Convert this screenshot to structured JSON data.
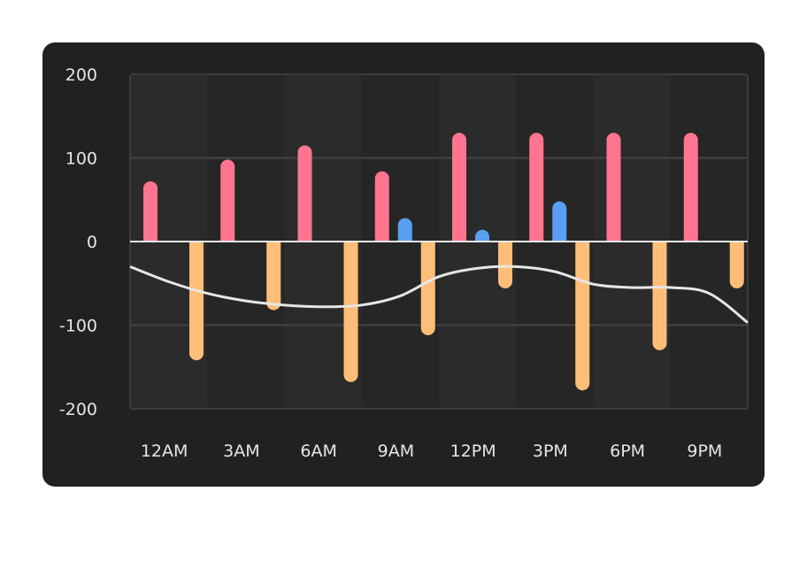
{
  "chart_data": {
    "type": "bar",
    "categories": [
      "12AM",
      "3AM",
      "6AM",
      "9AM",
      "12PM",
      "3PM",
      "6PM",
      "9PM"
    ],
    "series": [
      {
        "name": "",
        "color": "#ff758f",
        "values": [
          72,
          98,
          115,
          84,
          130,
          130,
          130,
          130
        ]
      },
      {
        "name": "",
        "color": "#5aa0f2",
        "values": [
          0,
          0,
          0,
          28,
          14,
          48,
          0,
          0
        ]
      },
      {
        "name": "",
        "color": "#ffbe78",
        "values": [
          -142,
          -82,
          -168,
          -112,
          -56,
          -178,
          -130,
          -56
        ]
      }
    ],
    "line": {
      "name": "",
      "color": "#e6e6e6",
      "x": [
        0,
        0.5,
        1.0,
        1.5,
        2.0,
        2.5,
        3.0,
        3.5,
        4.0,
        4.5,
        5.0,
        5.5,
        6.0,
        6.5,
        7.0,
        7.5,
        8.0
      ],
      "values": [
        -30,
        -48,
        -62,
        -71,
        -76,
        -78,
        -76,
        -65,
        -42,
        -32,
        -30,
        -36,
        -51,
        -55,
        -55,
        -62,
        -97
      ]
    },
    "yticks": [
      "200",
      "100",
      "0",
      "-100",
      "-200"
    ],
    "ylim": [
      -200,
      200
    ],
    "title": "",
    "xlabel": "",
    "ylabel": "",
    "grid": true,
    "background": "#212121",
    "band_colors": [
      "#2b2b2b",
      "#262626"
    ]
  }
}
